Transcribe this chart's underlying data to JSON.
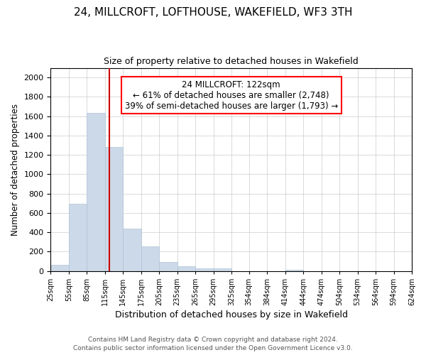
{
  "title": "24, MILLCROFT, LOFTHOUSE, WAKEFIELD, WF3 3TH",
  "subtitle": "Size of property relative to detached houses in Wakefield",
  "xlabel": "Distribution of detached houses by size in Wakefield",
  "ylabel": "Number of detached properties",
  "bar_color": "#ccd9e8",
  "bar_edge_color": "#b0c4d8",
  "property_line_color": "#cc0000",
  "property_value": 122,
  "property_label": "24 MILLCROFT: 122sqm",
  "annotation_line1": "← 61% of detached houses are smaller (2,748)",
  "annotation_line2": "39% of semi-detached houses are larger (1,793) →",
  "bin_edges": [
    25,
    55,
    85,
    115,
    145,
    175,
    205,
    235,
    265,
    295,
    325,
    354,
    384,
    414,
    444,
    474,
    504,
    534,
    564,
    594,
    624
  ],
  "bin_counts": [
    65,
    695,
    1635,
    1285,
    435,
    255,
    90,
    50,
    30,
    25,
    0,
    0,
    0,
    15,
    0,
    0,
    0,
    0,
    0,
    0
  ],
  "ylim": [
    0,
    2100
  ],
  "yticks": [
    0,
    200,
    400,
    600,
    800,
    1000,
    1200,
    1400,
    1600,
    1800,
    2000
  ],
  "footnote1": "Contains HM Land Registry data © Crown copyright and database right 2024.",
  "footnote2": "Contains public sector information licensed under the Open Government Licence v3.0.",
  "background_color": "#ffffff",
  "grid_color": "#cccccc"
}
